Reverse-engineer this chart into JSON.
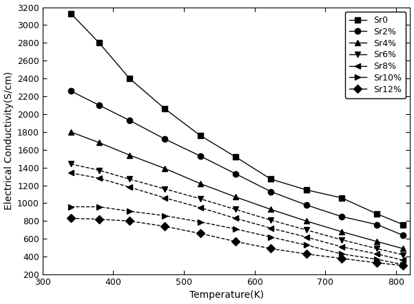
{
  "title": "",
  "xlabel": "Temperature(K)",
  "ylabel": "Electrical Conductivity(S/cm)",
  "xlim": [
    300,
    820
  ],
  "ylim": [
    200,
    3200
  ],
  "xticks": [
    300,
    400,
    500,
    600,
    700,
    800
  ],
  "yticks": [
    200,
    400,
    600,
    800,
    1000,
    1200,
    1400,
    1600,
    1800,
    2000,
    2200,
    2400,
    2600,
    2800,
    3000,
    3200
  ],
  "series": [
    {
      "label": "Sr0",
      "marker": "s",
      "linestyle": "-",
      "color": "#000000",
      "x": [
        340,
        380,
        423,
        473,
        523,
        573,
        623,
        673,
        723,
        773,
        810
      ],
      "y": [
        3130,
        2800,
        2400,
        2060,
        1760,
        1520,
        1270,
        1150,
        1060,
        880,
        760
      ]
    },
    {
      "label": "Sr2%",
      "marker": "o",
      "linestyle": "-",
      "color": "#000000",
      "x": [
        340,
        380,
        423,
        473,
        523,
        573,
        623,
        673,
        723,
        773,
        810
      ],
      "y": [
        2260,
        2100,
        1930,
        1720,
        1530,
        1330,
        1130,
        980,
        850,
        760,
        640
      ]
    },
    {
      "label": "Sr4%",
      "marker": "^",
      "linestyle": "-",
      "color": "#000000",
      "x": [
        340,
        380,
        423,
        473,
        523,
        573,
        623,
        673,
        723,
        773,
        810
      ],
      "y": [
        1800,
        1680,
        1540,
        1390,
        1220,
        1070,
        930,
        800,
        680,
        570,
        490
      ]
    },
    {
      "label": "Sr6%",
      "marker": "v",
      "linestyle": "-",
      "color": "#000000",
      "x": [
        340,
        380,
        423,
        473,
        523,
        573,
        623,
        673,
        723,
        773,
        810
      ],
      "y": [
        1440,
        1370,
        1270,
        1160,
        1050,
        930,
        810,
        700,
        590,
        490,
        420
      ]
    },
    {
      "label": "Sr8%",
      "marker": "<",
      "linestyle": "-",
      "color": "#000000",
      "x": [
        340,
        380,
        423,
        473,
        523,
        573,
        623,
        673,
        723,
        773,
        810
      ],
      "y": [
        1340,
        1280,
        1180,
        1060,
        950,
        830,
        720,
        620,
        510,
        430,
        360
      ]
    },
    {
      "label": "Sr10%",
      "marker": ">",
      "linestyle": "-",
      "color": "#000000",
      "x": [
        340,
        380,
        423,
        473,
        523,
        573,
        623,
        673,
        723,
        773,
        810
      ],
      "y": [
        960,
        960,
        910,
        860,
        790,
        710,
        620,
        530,
        430,
        370,
        310
      ]
    },
    {
      "label": "Sr12%",
      "marker": "D",
      "linestyle": "-",
      "color": "#000000",
      "x": [
        340,
        380,
        423,
        473,
        523,
        573,
        623,
        673,
        723,
        773,
        810
      ],
      "y": [
        830,
        820,
        800,
        740,
        660,
        570,
        490,
        430,
        380,
        330,
        300
      ]
    }
  ],
  "background_color": "#ffffff",
  "markersize": 6,
  "linewidth": 1.0,
  "legend_fontsize": 9,
  "axis_fontsize": 10,
  "figsize": [
    6.01,
    4.42
  ],
  "dpi": 100
}
